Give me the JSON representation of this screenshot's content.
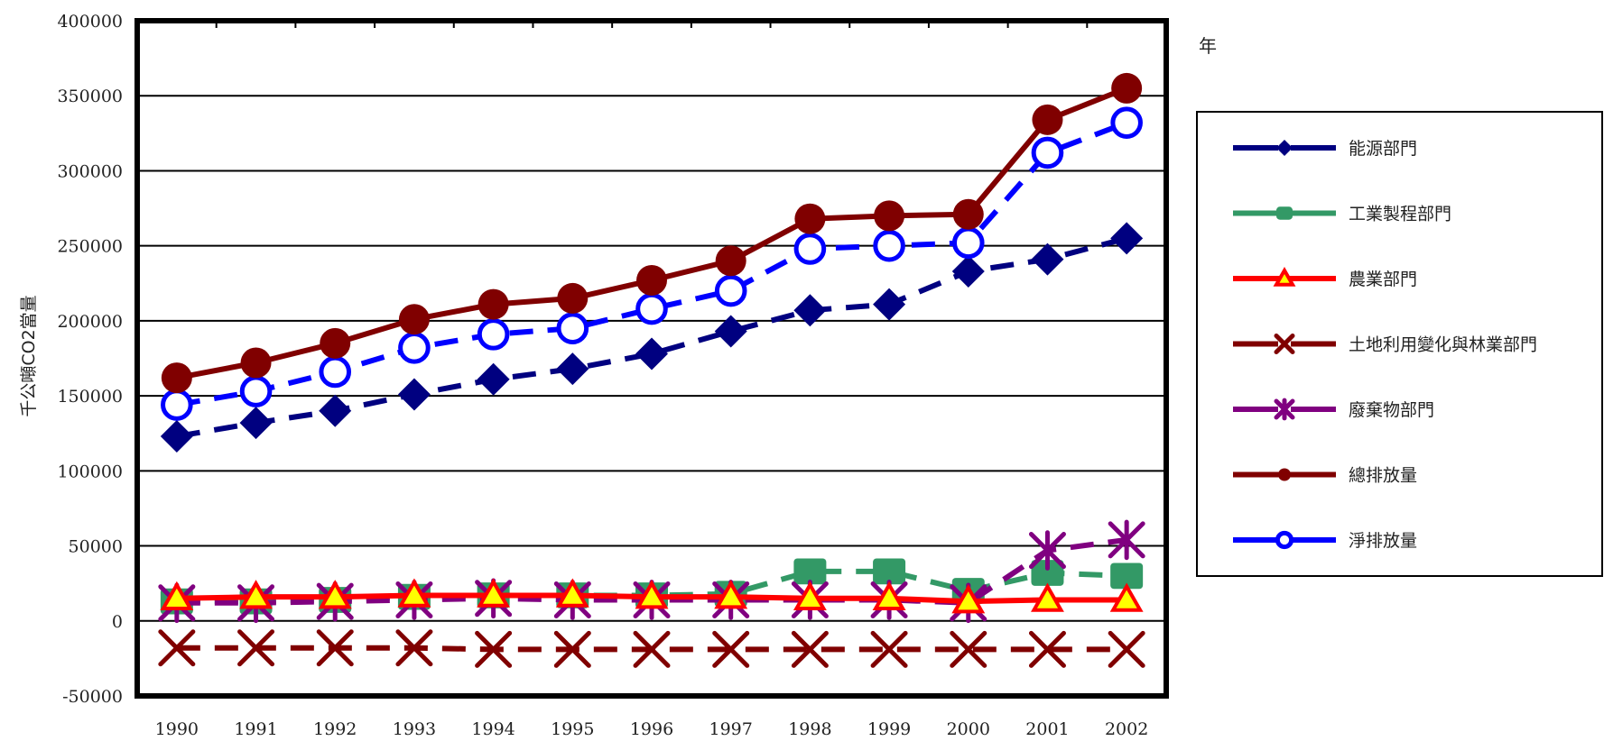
{
  "chart_data": {
    "type": "line",
    "title": "",
    "xlabel": "年",
    "ylabel": "千公噸CO2當量",
    "ylim": [
      -50000,
      400000
    ],
    "yticks": [
      400000,
      350000,
      300000,
      250000,
      200000,
      150000,
      100000,
      50000,
      0,
      -50000
    ],
    "grid": true,
    "legend_position": "right",
    "categories": [
      "1990",
      "1991",
      "1992",
      "1993",
      "1994",
      "1995",
      "1996",
      "1997",
      "1998",
      "1999",
      "2000",
      "2001",
      "2002"
    ],
    "series": [
      {
        "name": "能源部門",
        "color": "#000080",
        "marker": "diamond",
        "dashed": true,
        "values": [
          123000,
          132000,
          140000,
          151000,
          161000,
          168000,
          178000,
          193000,
          207000,
          211000,
          233000,
          241000,
          255000
        ]
      },
      {
        "name": "工業製程部門",
        "color": "#339966",
        "marker": "square",
        "dashed": true,
        "values": [
          13000,
          13000,
          14000,
          16000,
          17000,
          17000,
          17000,
          18000,
          33000,
          33000,
          20000,
          32000,
          30000
        ]
      },
      {
        "name": "農業部門",
        "color": "#ff0000",
        "marker": "triangle",
        "dashed": false,
        "values": [
          15000,
          16000,
          16000,
          17000,
          17000,
          17000,
          16000,
          16000,
          15000,
          15000,
          13000,
          14000,
          14000
        ]
      },
      {
        "name": "土地利用變化與林業部門",
        "color": "#800000",
        "marker": "x",
        "dashed": true,
        "values": [
          -18000,
          -18000,
          -18000,
          -18000,
          -19000,
          -19000,
          -19000,
          -19000,
          -19000,
          -19000,
          -19000,
          -19000,
          -19000
        ]
      },
      {
        "name": "廢棄物部門",
        "color": "#800080",
        "marker": "star",
        "dashed": true,
        "values": [
          12000,
          12000,
          13000,
          14000,
          15000,
          14000,
          14000,
          14000,
          14000,
          14000,
          12000,
          47000,
          54000
        ]
      },
      {
        "name": "總排放量",
        "color": "#800000",
        "marker": "circle",
        "dashed": false,
        "values": [
          162000,
          172000,
          185000,
          201000,
          211000,
          215000,
          227000,
          240000,
          268000,
          270000,
          271000,
          334000,
          355000
        ]
      },
      {
        "name": "淨排放量",
        "color": "#0000ff",
        "marker": "open-circle",
        "dashed": true,
        "values": [
          144000,
          153000,
          166000,
          182000,
          191000,
          195000,
          208000,
          220000,
          248000,
          250000,
          252000,
          312000,
          332000
        ]
      }
    ]
  }
}
